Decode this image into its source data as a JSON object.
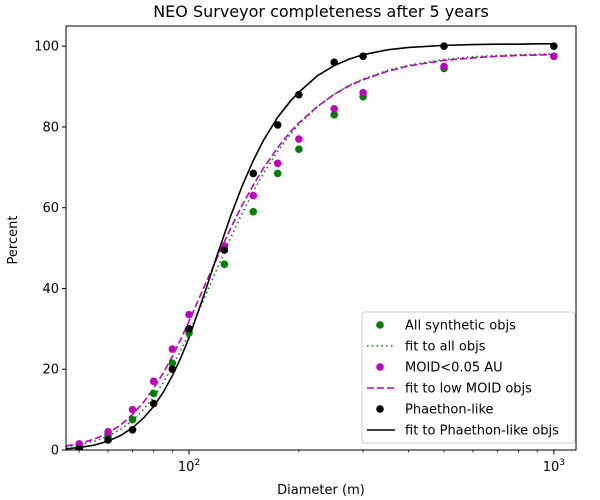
{
  "chart_data": {
    "type": "scatter",
    "title": "NEO Surveyor completeness after 5 years",
    "xlabel": "Diameter (m)",
    "ylabel": "Percent",
    "xscale": "log",
    "xlim": [
      46,
      1150
    ],
    "ylim": [
      0,
      105
    ],
    "xticks": [
      {
        "value": 100,
        "base": "10",
        "exp": "2"
      },
      {
        "value": 1000,
        "base": "10",
        "exp": "3"
      }
    ],
    "yticks": [
      0,
      20,
      40,
      60,
      80,
      100
    ],
    "legend_location": "lower-right",
    "series": [
      {
        "name": "All synthetic objs",
        "kind": "points",
        "color": "#008000",
        "x": [
          50,
          60,
          70,
          80,
          90,
          100,
          125,
          150,
          175,
          200,
          250,
          300,
          500,
          1000
        ],
        "y": [
          1.0,
          3.5,
          7.5,
          14.0,
          21.5,
          29.0,
          46.0,
          59.0,
          68.5,
          74.5,
          83.0,
          87.5,
          94.5,
          97.5
        ]
      },
      {
        "name": "fit to all objs",
        "kind": "curve",
        "style": "dotted",
        "color": "#008000",
        "x": [
          46,
          50,
          55,
          60,
          65,
          70,
          75,
          80,
          85,
          90,
          95,
          100,
          110,
          120,
          130,
          140,
          150,
          160,
          175,
          190,
          200,
          225,
          250,
          275,
          300,
          350,
          400,
          500,
          600,
          700,
          800,
          900,
          1000
        ],
        "y": [
          0.8,
          1.3,
          2.2,
          3.4,
          5.1,
          7.3,
          10.0,
          13.1,
          16.7,
          20.6,
          24.7,
          28.9,
          37.4,
          45.4,
          52.5,
          58.7,
          64.0,
          68.5,
          74.0,
          78.3,
          80.6,
          85.0,
          88.1,
          90.3,
          91.9,
          94.0,
          95.3,
          96.7,
          97.4,
          97.7,
          97.9,
          98.0,
          98.1
        ]
      },
      {
        "name": "MOID<0.05 AU",
        "kind": "points",
        "color": "#bf00bf",
        "x": [
          50,
          60,
          70,
          80,
          90,
          100,
          125,
          150,
          175,
          200,
          250,
          300,
          500,
          1000
        ],
        "y": [
          1.5,
          4.5,
          10.0,
          17.0,
          25.0,
          33.5,
          50.5,
          63.0,
          71.0,
          77.0,
          84.5,
          88.5,
          95.0,
          97.5
        ]
      },
      {
        "name": "fit to low MOID objs",
        "kind": "curve",
        "style": "dashed",
        "color": "#bf00bf",
        "x": [
          46,
          50,
          55,
          60,
          65,
          70,
          75,
          80,
          85,
          90,
          95,
          100,
          110,
          120,
          130,
          140,
          150,
          160,
          175,
          190,
          200,
          225,
          250,
          275,
          300,
          350,
          400,
          500,
          600,
          700,
          800,
          900,
          1000
        ],
        "y": [
          1.0,
          1.6,
          2.7,
          4.2,
          6.2,
          8.8,
          11.8,
          15.3,
          19.1,
          23.2,
          27.5,
          31.9,
          40.4,
          48.1,
          54.9,
          60.7,
          65.6,
          69.8,
          74.9,
          78.9,
          81.0,
          85.1,
          88.1,
          90.2,
          91.7,
          93.8,
          95.1,
          96.5,
          97.1,
          97.5,
          97.7,
          97.8,
          97.9
        ]
      },
      {
        "name": "Phaethon-like",
        "kind": "points",
        "color": "#000000",
        "x": [
          50,
          60,
          70,
          80,
          90,
          100,
          125,
          150,
          175,
          200,
          250,
          300,
          500,
          1000
        ],
        "y": [
          0.3,
          2.5,
          5.0,
          11.5,
          20.0,
          30.0,
          49.5,
          68.5,
          80.5,
          88.0,
          96.0,
          97.5,
          100.0,
          100.0
        ]
      },
      {
        "name": "fit to Phaethon-like objs",
        "kind": "curve",
        "style": "solid",
        "color": "#000000",
        "x": [
          46,
          50,
          55,
          60,
          65,
          70,
          75,
          80,
          85,
          90,
          95,
          100,
          110,
          120,
          130,
          140,
          150,
          160,
          175,
          190,
          200,
          225,
          250,
          275,
          300,
          350,
          400,
          500,
          600,
          700,
          800,
          900,
          1000
        ],
        "y": [
          0.3,
          0.6,
          1.2,
          2.2,
          3.6,
          5.5,
          7.9,
          10.8,
          14.3,
          18.4,
          22.9,
          27.8,
          38.5,
          48.8,
          57.9,
          65.5,
          71.7,
          76.7,
          82.4,
          86.5,
          88.6,
          92.7,
          95.2,
          96.8,
          97.9,
          99.1,
          99.7,
          100.2,
          100.4,
          100.5,
          100.5,
          100.6,
          100.6
        ]
      }
    ]
  }
}
